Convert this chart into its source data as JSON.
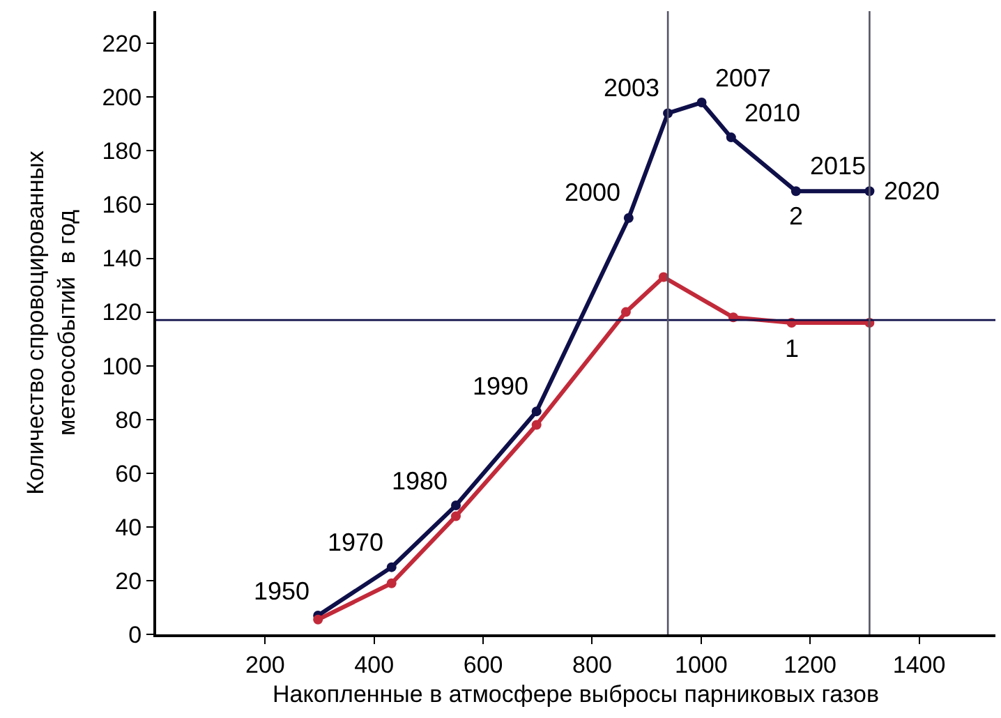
{
  "chart_data": {
    "type": "line",
    "xlabel": "Накопленные в атмосфере выбросы парниковых газов",
    "ylabel": "Количество спровоцированных\nметеособытий  в год",
    "series": [
      {
        "name": "2",
        "color": "#0f0f4a",
        "x": [
          297,
          432,
          550,
          698,
          867,
          939,
          1001,
          1055,
          1174,
          1309
        ],
        "values": [
          7,
          25,
          48,
          83,
          155,
          194,
          198,
          185,
          165,
          165
        ]
      },
      {
        "name": "1",
        "color": "#c22a3a",
        "x": [
          297,
          432,
          550,
          698,
          862,
          931,
          1059,
          1166,
          1309
        ],
        "values": [
          5.5,
          19,
          44,
          78,
          120,
          133,
          118,
          116,
          116
        ]
      }
    ],
    "annotations": [
      {
        "text": "1950",
        "x": 297,
        "y": 7
      },
      {
        "text": "1970",
        "x": 432,
        "y": 25
      },
      {
        "text": "1980",
        "x": 550,
        "y": 48
      },
      {
        "text": "1990",
        "x": 698,
        "y": 83
      },
      {
        "text": "2000",
        "x": 867,
        "y": 155
      },
      {
        "text": "2003",
        "x": 939,
        "y": 194
      },
      {
        "text": "2007",
        "x": 1001,
        "y": 198
      },
      {
        "text": "2010",
        "x": 1055,
        "y": 185
      },
      {
        "text": "2015",
        "x": 1174,
        "y": 165
      },
      {
        "text": "2020",
        "x": 1309,
        "y": 165
      }
    ],
    "ref_lines": [
      {
        "axis": "y",
        "value": 117,
        "color": "#0f0f4a"
      },
      {
        "axis": "x",
        "value": 939,
        "color": "#555566"
      },
      {
        "axis": "x",
        "value": 1309,
        "color": "#555566"
      }
    ],
    "xlim": [
      0,
      1540
    ],
    "ylim": [
      0,
      232
    ],
    "xticks": [
      200,
      400,
      600,
      800,
      1000,
      1200,
      1400
    ],
    "yticks": [
      0,
      20,
      40,
      60,
      80,
      100,
      120,
      140,
      160,
      180,
      200,
      220
    ],
    "legend": false,
    "marker": "circle",
    "line_style": "solid"
  }
}
